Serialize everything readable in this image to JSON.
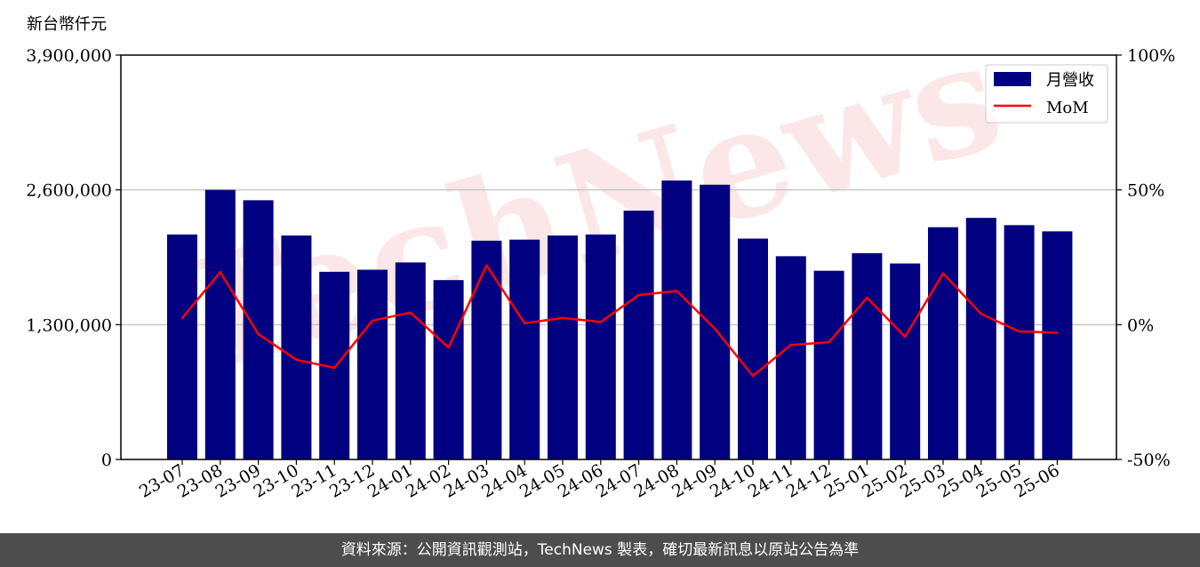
{
  "watermark": "TechNews",
  "footer": {
    "text": "資料來源：公開資訊觀測站，TechNews 製表，確切最新訊息以原站公告為準"
  },
  "chart_data": {
    "type": "bar",
    "unit_label": "新台幣仟元",
    "categories": [
      "23-07",
      "23-08",
      "23-09",
      "23-10",
      "23-11",
      "23-12",
      "24-01",
      "24-02",
      "24-03",
      "24-04",
      "24-05",
      "24-06",
      "24-07",
      "24-08",
      "24-09",
      "24-10",
      "24-11",
      "24-12",
      "25-01",
      "25-02",
      "25-03",
      "25-04",
      "25-05",
      "25-06"
    ],
    "series": [
      {
        "name": "月營收",
        "type": "bar",
        "axis": "left",
        "color": "#000080",
        "values": [
          2170000,
          2600000,
          2500000,
          2160000,
          1810000,
          1830000,
          1900000,
          1730000,
          2110000,
          2120000,
          2160000,
          2170000,
          2400000,
          2690000,
          2650000,
          2130000,
          1960000,
          1820000,
          1990000,
          1890000,
          2240000,
          2330000,
          2260000,
          2200000
        ]
      },
      {
        "name": "MoM",
        "type": "line",
        "axis": "right",
        "color": "#ff0000",
        "values": [
          2.5,
          19.5,
          -3.5,
          -13,
          -16,
          1.5,
          4.5,
          -8.5,
          22,
          0.5,
          2.5,
          1,
          11,
          12.5,
          -1.5,
          -19,
          -7.5,
          -6.5,
          10,
          -4.5,
          19,
          4,
          -2.5,
          -3
        ]
      }
    ],
    "y_left": {
      "min": 0,
      "max": 3900000,
      "ticks": [
        "0",
        "1,300,000",
        "2,600,000",
        "3,900,000"
      ],
      "tick_values": [
        0,
        1300000,
        2600000,
        3900000
      ]
    },
    "y_right": {
      "min": -50,
      "max": 100,
      "ticks": [
        "-50%",
        "0%",
        "50%",
        "100%"
      ],
      "tick_values": [
        -50,
        0,
        50,
        100
      ]
    },
    "grid": "horizontal",
    "legend": "top-right"
  }
}
